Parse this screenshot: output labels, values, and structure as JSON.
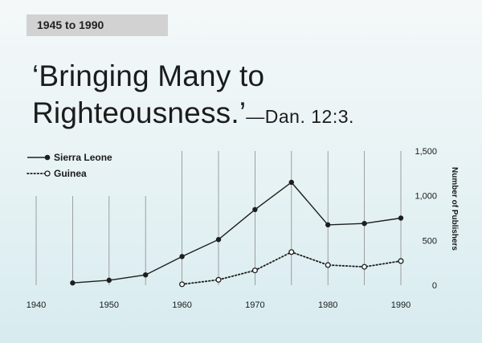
{
  "header": {
    "period_label": "1945 to 1990",
    "title_main": "‘Bringing Many to Righteousness.’",
    "title_ref": "—Dan. 12:3."
  },
  "chart_data": {
    "type": "line",
    "x": [
      1945,
      1950,
      1955,
      1960,
      1965,
      1970,
      1975,
      1980,
      1985,
      1990
    ],
    "series": [
      {
        "name": "Sierra Leone",
        "style": "solid",
        "marker": "filled",
        "values": [
          25,
          55,
          115,
          320,
          510,
          845,
          1150,
          675,
          690,
          750
        ]
      },
      {
        "name": "Guinea",
        "style": "dotted",
        "marker": "open",
        "values": [
          null,
          null,
          null,
          10,
          60,
          165,
          370,
          225,
          205,
          270
        ]
      }
    ],
    "x_ticks": [
      "1940",
      "1950",
      "1960",
      "1970",
      "1980",
      "1990"
    ],
    "y_ticks": [
      "0",
      "500",
      "1,000",
      "1,500"
    ],
    "ylabel": "Number of Publishers",
    "xlim": [
      1940,
      1990
    ],
    "ylim": [
      0,
      1500
    ],
    "grid": "vertical lines every 5 years",
    "legend_position": "top-left",
    "colors": {
      "line": "#1e1e1e",
      "grid": "#8a8a8a",
      "marker_fill_open": "#ffffff"
    }
  }
}
